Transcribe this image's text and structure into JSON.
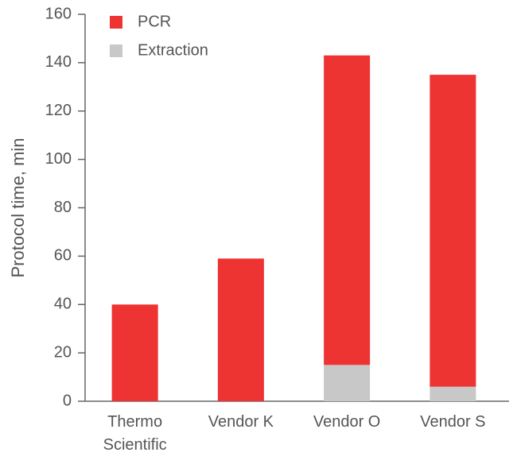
{
  "chart_data": {
    "type": "bar",
    "stacked": true,
    "categories": [
      [
        "Thermo",
        "Scientific"
      ],
      [
        "Vendor K"
      ],
      [
        "Vendor O"
      ],
      [
        "Vendor S"
      ]
    ],
    "series": [
      {
        "name": "Extraction",
        "color": "#c8c8c8",
        "values": [
          0,
          0,
          15,
          6
        ]
      },
      {
        "name": "PCR",
        "color": "#ee3333",
        "values": [
          40,
          59,
          128,
          129
        ]
      }
    ],
    "legend_order": [
      "PCR",
      "Extraction"
    ],
    "legend_position": "top-left",
    "ylabel": "Protocol time, min",
    "xlabel": "",
    "title": "",
    "ylim": [
      0,
      160
    ],
    "yticks": [
      0,
      20,
      40,
      60,
      80,
      100,
      120,
      140,
      160
    ],
    "grid": false
  }
}
